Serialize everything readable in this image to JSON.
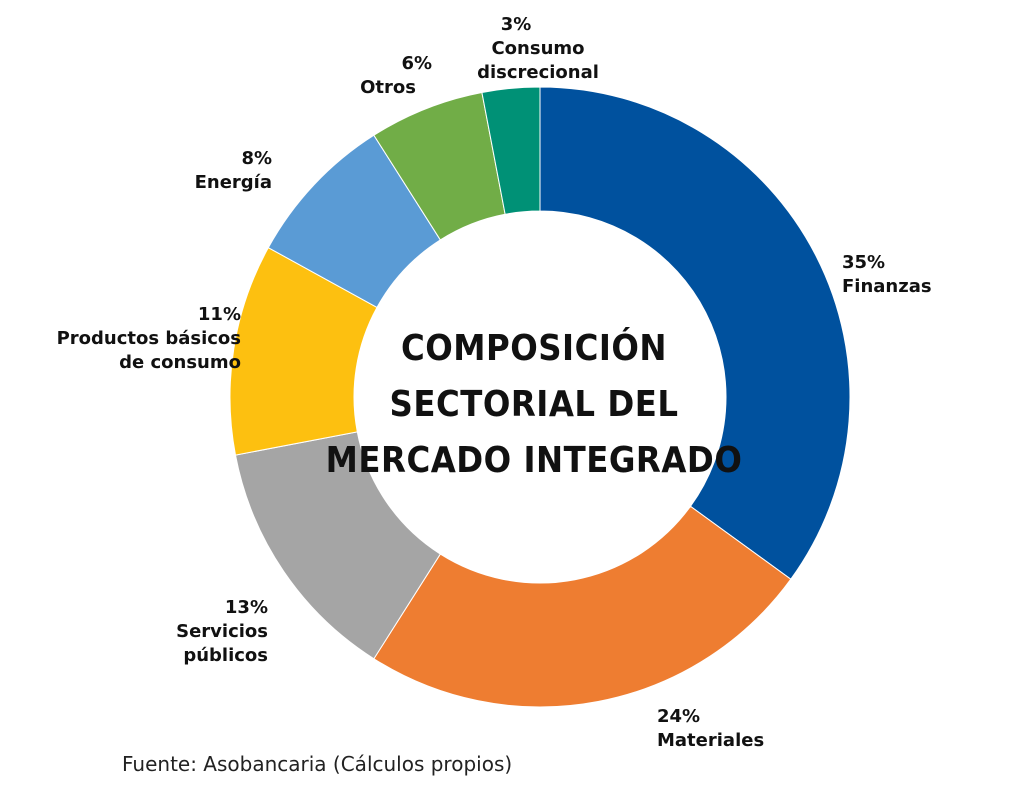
{
  "chart_data": {
    "type": "pie",
    "donut": true,
    "title_lines": [
      "COMPOSICIÓN",
      "SECTORIAL DEL",
      "MERCADO INTEGRADO"
    ],
    "source": "Fuente: Asobancaria (Cálculos propios)",
    "slices": [
      {
        "id": "finanzas",
        "percent_label": "35%",
        "name_lines": [
          "Finanzas"
        ],
        "value": 35,
        "color": "#00519e"
      },
      {
        "id": "materiales",
        "percent_label": "24%",
        "name_lines": [
          "Materiales"
        ],
        "value": 24,
        "color": "#ee7d31"
      },
      {
        "id": "servicios-publicos",
        "percent_label": "13%",
        "name_lines": [
          "Servicios",
          "públicos"
        ],
        "value": 13,
        "color": "#a5a5a5"
      },
      {
        "id": "productos-basicos",
        "percent_label": "11%",
        "name_lines": [
          "Productos básicos",
          "de consumo"
        ],
        "value": 11,
        "color": "#fdc010"
      },
      {
        "id": "energia",
        "percent_label": "8%",
        "name_lines": [
          "Energía"
        ],
        "value": 8,
        "color": "#5a9bd5"
      },
      {
        "id": "otros",
        "percent_label": "6%",
        "name_lines": [
          "Otros"
        ],
        "value": 6,
        "color": "#71ad47"
      },
      {
        "id": "consumo-discrecional",
        "percent_label": "3%",
        "name_lines": [
          "Consumo",
          "discrecional"
        ],
        "value": 3,
        "color": "#009176"
      }
    ]
  }
}
